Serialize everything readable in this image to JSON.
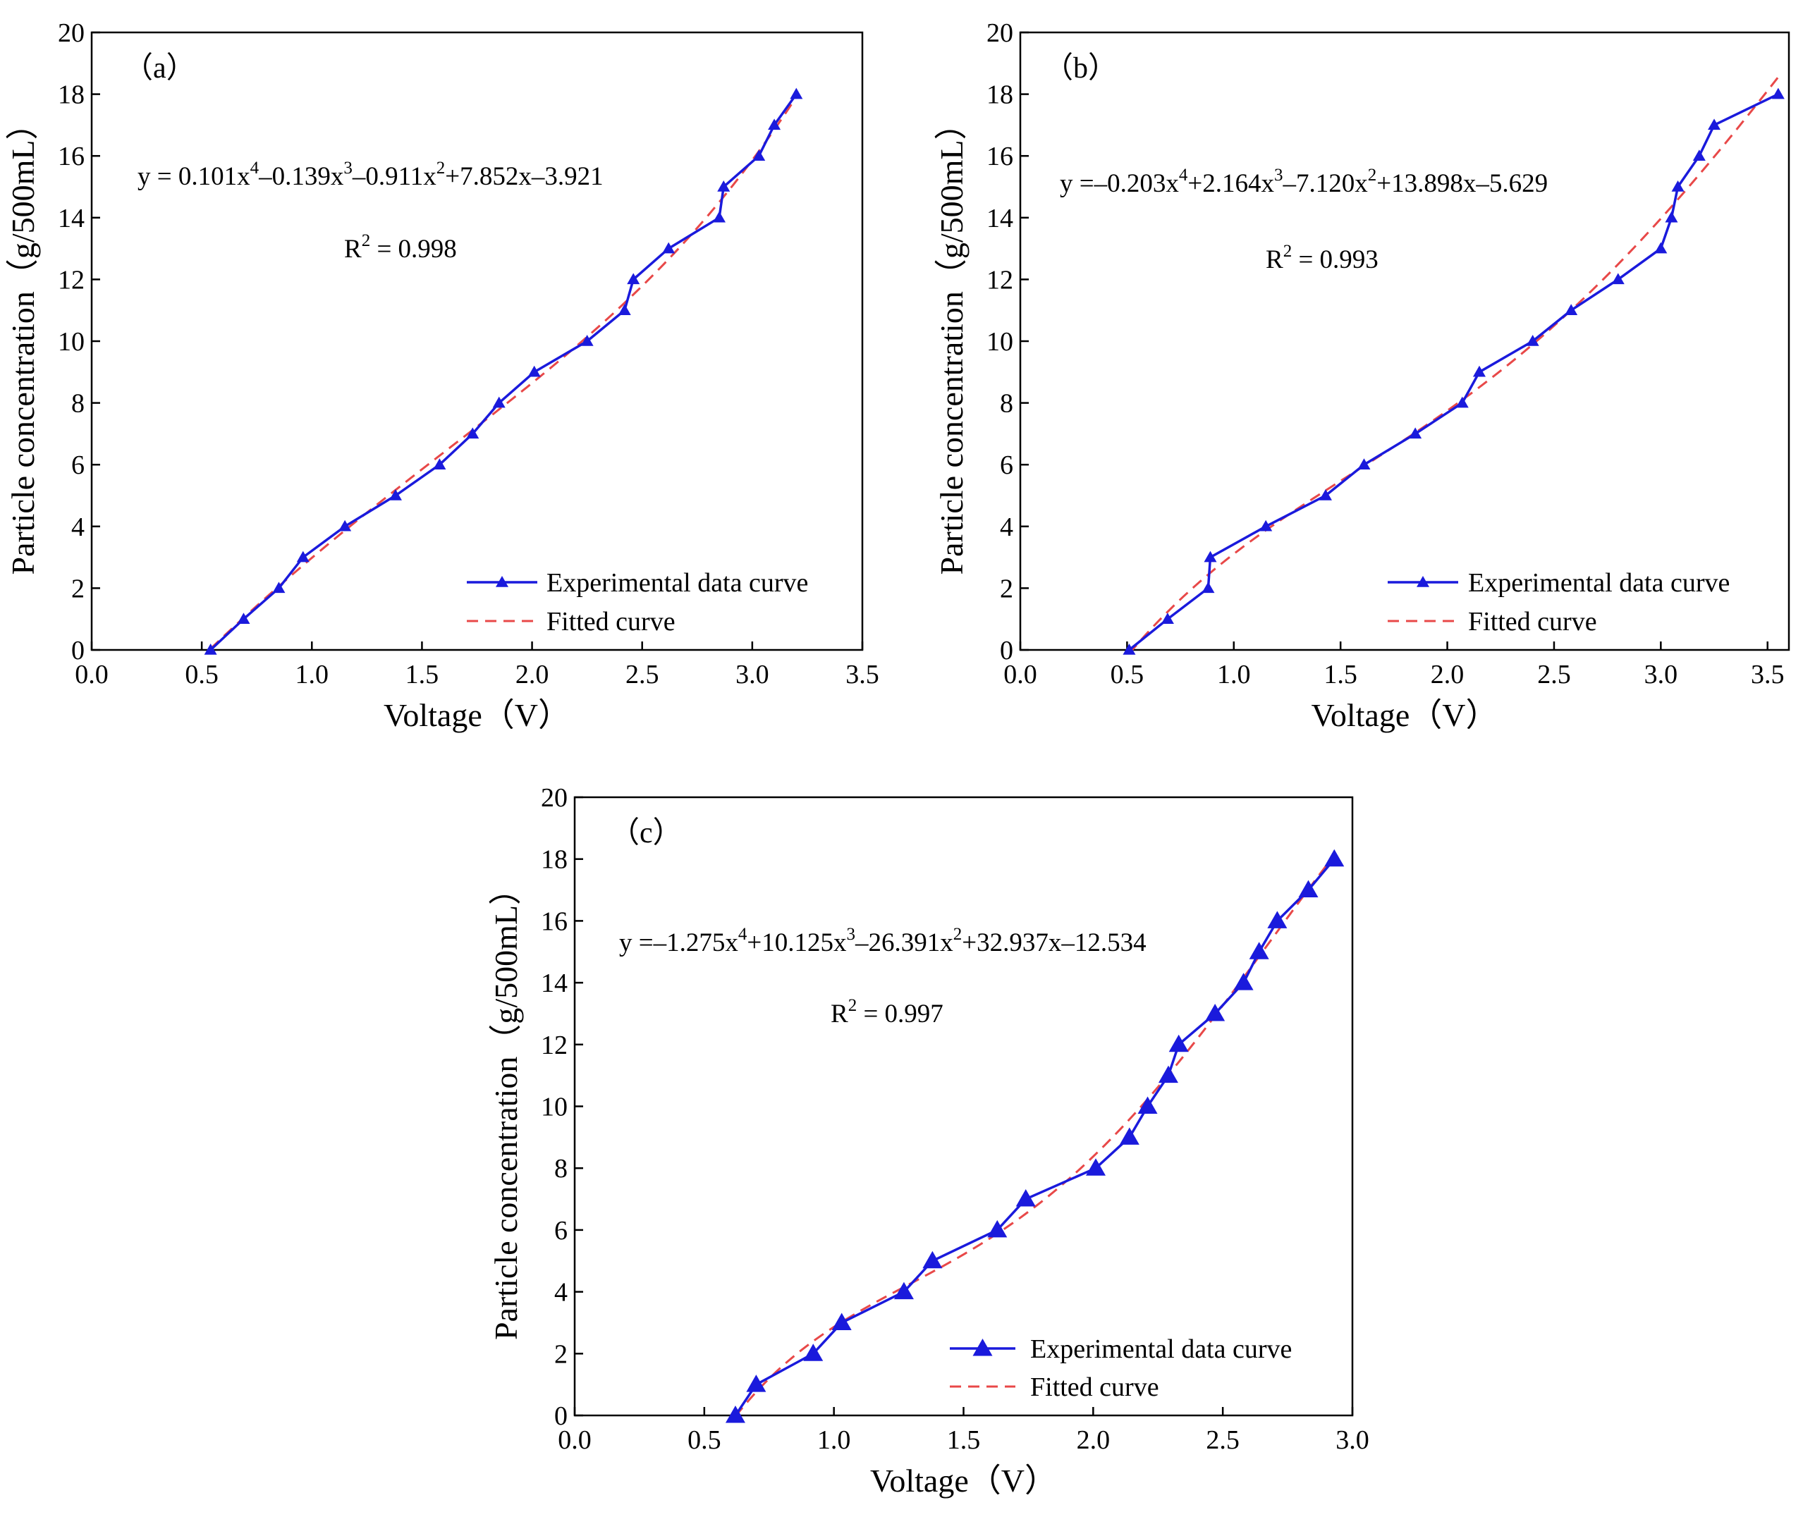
{
  "chart_data": [
    {
      "type": "line",
      "panel_label": "（a）",
      "xlabel": "Voltage（V）",
      "ylabel": "Particle concentration（g/500mL）",
      "xlim": [
        0,
        3.5
      ],
      "ylim": [
        0,
        20
      ],
      "xticks": [
        "0.0",
        "0.5",
        "1.0",
        "1.5",
        "2.0",
        "2.5",
        "3.0",
        "3.5"
      ],
      "yticks": [
        "0",
        "2",
        "4",
        "6",
        "8",
        "10",
        "12",
        "14",
        "16",
        "18",
        "20"
      ],
      "equation": {
        "text": "y = 0.101x",
        "parts": [
          "4",
          "–0.139x",
          "3",
          "–0.911x",
          "2",
          "+7.852x–3.921"
        ]
      },
      "r2": {
        "prefix": "R",
        "sup": "2",
        "value": " = 0.998"
      },
      "fit_coeffs": [
        0.101,
        -0.139,
        -0.911,
        7.852,
        -3.921
      ],
      "series": [
        {
          "name": "Experimental data curve",
          "color": "#1a1adc",
          "x": [
            0.54,
            0.69,
            0.85,
            0.96,
            1.15,
            1.38,
            1.58,
            1.73,
            1.85,
            2.01,
            2.25,
            2.42,
            2.46,
            2.62,
            2.85,
            2.87,
            3.03,
            3.1,
            3.2
          ],
          "y": [
            0,
            1,
            2,
            3,
            4,
            5,
            6,
            7,
            8,
            9,
            10,
            11,
            12,
            13,
            14,
            15,
            16,
            17,
            18
          ]
        },
        {
          "name": "Fitted curve",
          "color": "#e84848",
          "x_range": [
            0.54,
            3.2
          ]
        }
      ],
      "legend_position": "bottom-right"
    },
    {
      "type": "line",
      "panel_label": "（b）",
      "xlabel": "Voltage（V）",
      "ylabel": "Particle concentration（g/500mL）",
      "xlim": [
        0,
        3.6
      ],
      "ylim": [
        0,
        20
      ],
      "xticks": [
        "0.0",
        "0.5",
        "1.0",
        "1.5",
        "2.0",
        "2.5",
        "3.0",
        "3.5"
      ],
      "yticks": [
        "0",
        "2",
        "4",
        "6",
        "8",
        "10",
        "12",
        "14",
        "16",
        "18",
        "20"
      ],
      "equation": {
        "text": "y =–0.203x",
        "parts": [
          "4",
          "+2.164x",
          "3",
          "–7.120x",
          "2",
          "+13.898x–5.629"
        ]
      },
      "r2": {
        "prefix": "R",
        "sup": "2",
        "value": " = 0.993"
      },
      "fit_coeffs": [
        -0.203,
        2.164,
        -7.12,
        13.898,
        -5.629
      ],
      "series": [
        {
          "name": "Experimental data curve",
          "color": "#1a1adc",
          "x": [
            0.51,
            0.69,
            0.88,
            0.89,
            1.15,
            1.43,
            1.61,
            1.85,
            2.07,
            2.15,
            2.4,
            2.58,
            2.8,
            3.0,
            3.05,
            3.08,
            3.18,
            3.25,
            3.55
          ],
          "y": [
            0,
            1,
            2,
            3,
            4,
            5,
            6,
            7,
            8,
            9,
            10,
            11,
            12,
            13,
            14,
            15,
            16,
            17,
            18
          ]
        },
        {
          "name": "Fitted curve",
          "color": "#e84848",
          "x_range": [
            0.51,
            3.56
          ]
        }
      ],
      "legend_position": "bottom-right"
    },
    {
      "type": "line",
      "panel_label": "（c）",
      "xlabel": "Voltage（V）",
      "ylabel": "Particle concentration（g/500mL）",
      "xlim": [
        0,
        3.0
      ],
      "ylim": [
        0,
        20
      ],
      "xticks": [
        "0.0",
        "0.5",
        "1.0",
        "1.5",
        "2.0",
        "2.5",
        "3.0"
      ],
      "yticks": [
        "0",
        "2",
        "4",
        "6",
        "8",
        "10",
        "12",
        "14",
        "16",
        "18",
        "20"
      ],
      "equation": {
        "text": "y =–1.275x",
        "parts": [
          "4",
          "+10.125x",
          "3",
          "–26.391x",
          "2",
          "+32.937x–12.534"
        ]
      },
      "r2": {
        "prefix": "R",
        "sup": "2",
        "value": " = 0.997"
      },
      "fit_coeffs": [
        -1.275,
        10.125,
        -26.391,
        32.937,
        -12.534
      ],
      "series": [
        {
          "name": "Experimental data curve",
          "color": "#1a1adc",
          "x": [
            0.62,
            0.7,
            0.92,
            1.03,
            1.27,
            1.38,
            1.63,
            1.74,
            2.01,
            2.14,
            2.21,
            2.29,
            2.33,
            2.47,
            2.58,
            2.64,
            2.71,
            2.83,
            2.93
          ],
          "y": [
            0,
            1,
            2,
            3,
            4,
            5,
            6,
            7,
            8,
            9,
            10,
            11,
            12,
            13,
            14,
            15,
            16,
            17,
            18
          ]
        },
        {
          "name": "Fitted curve",
          "color": "#e84848",
          "x_range": [
            0.62,
            2.93
          ]
        }
      ],
      "legend_position": "bottom-right"
    }
  ]
}
